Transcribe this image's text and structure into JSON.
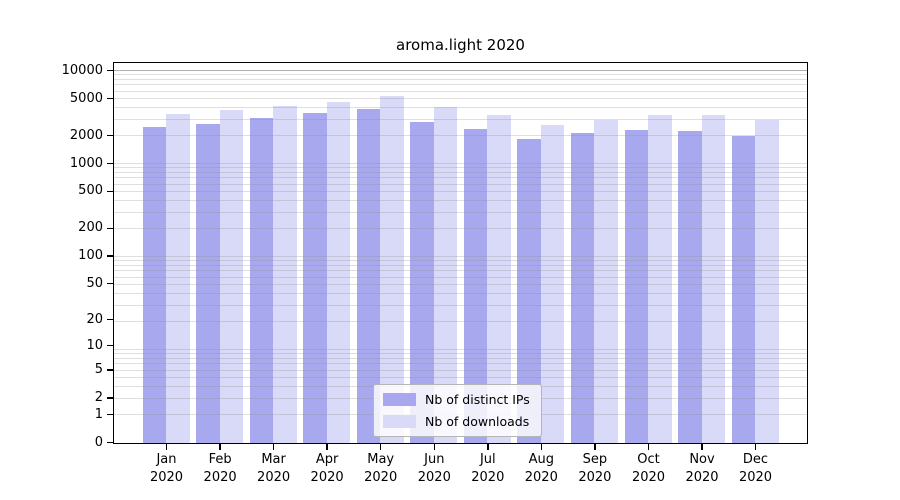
{
  "title": "aroma.light 2020",
  "legend": [
    {
      "label": "Nb of distinct IPs",
      "color": "#a8a8ee"
    },
    {
      "label": "Nb of downloads",
      "color": "#d9d9f8"
    }
  ],
  "chart_data": {
    "type": "bar",
    "title": "aroma.light 2020",
    "categories": [
      "Jan 2020",
      "Feb 2020",
      "Mar 2020",
      "Apr 2020",
      "May 2020",
      "Jun 2020",
      "Jul 2020",
      "Aug 2020",
      "Sep 2020",
      "Oct 2020",
      "Nov 2020",
      "Dec 2020"
    ],
    "series": [
      {
        "name": "Nb of distinct IPs",
        "color": "#a8a8ee",
        "values": [
          2480,
          2690,
          3100,
          3500,
          3900,
          2850,
          2360,
          1840,
          2140,
          2340,
          2280,
          2020
        ]
      },
      {
        "name": "Nb of downloads",
        "color": "#d9d9f8",
        "values": [
          3420,
          3810,
          4240,
          4680,
          5420,
          4130,
          3390,
          2630,
          2950,
          3390,
          3390,
          2990
        ]
      }
    ],
    "xlabel": "",
    "ylabel": "",
    "yscale": "log10(value+1)",
    "yticks": [
      10000,
      5000,
      2000,
      1000,
      500,
      200,
      100,
      50,
      20,
      10,
      5,
      2,
      1,
      0
    ],
    "ylim": [
      0,
      12500
    ],
    "grid": true,
    "legend_position": "lower center inside"
  }
}
